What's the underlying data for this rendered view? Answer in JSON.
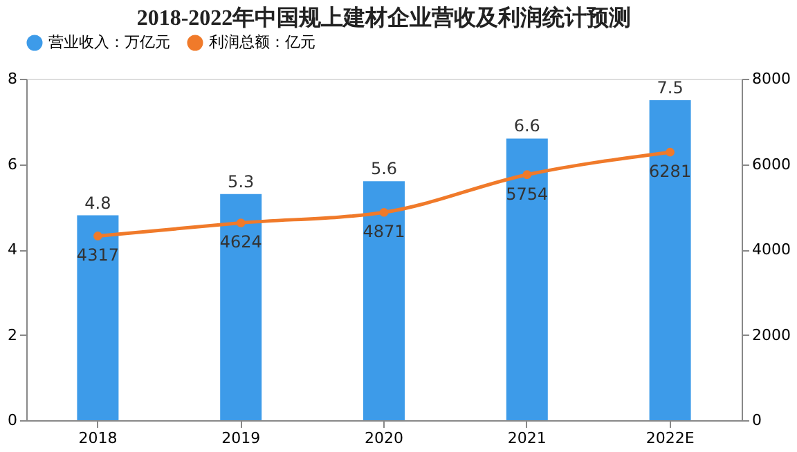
{
  "chart_data": {
    "type": "bar",
    "title": "2018-2022年中国规上建材企业营收及利润统计预测",
    "categories": [
      "2018",
      "2019",
      "2020",
      "2021",
      "2022E"
    ],
    "series": [
      {
        "name": "营业收入：万亿元",
        "color": "#3d9be9",
        "values": [
          4.8,
          5.3,
          5.6,
          6.6,
          7.5
        ]
      },
      {
        "name": "利润总额：亿元",
        "type": "line",
        "axis": "y2",
        "color": "#f07a2a",
        "values": [
          4317,
          4624,
          4871,
          5754,
          6281
        ]
      }
    ],
    "ylim": [
      0,
      8
    ],
    "yticks": [
      0,
      2,
      4,
      6,
      8
    ],
    "y2lim": [
      0,
      8000
    ],
    "y2ticks": [
      0,
      2000,
      4000,
      6000,
      8000
    ],
    "data_labels": true,
    "legend": "top",
    "grid": false,
    "marker": "circle",
    "line_style": "solid"
  }
}
